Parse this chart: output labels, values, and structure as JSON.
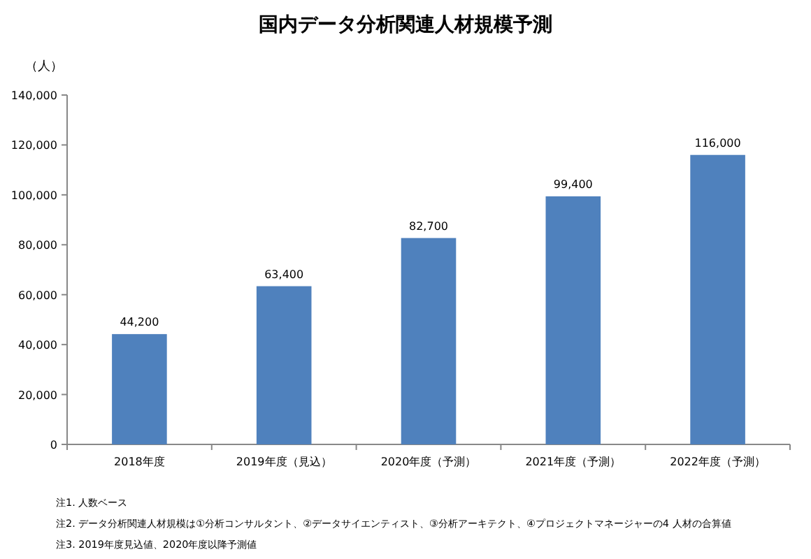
{
  "chart_data": {
    "type": "bar",
    "title": "国内データ分析関連人材規模予測",
    "ylabel": "（人）",
    "categories": [
      "2018年度",
      "2019年度（見込）",
      "2020年度（予測）",
      "2021年度（予測）",
      "2022年度（予測）"
    ],
    "values": [
      44200,
      63400,
      82700,
      99400,
      116000
    ],
    "value_labels": [
      "44,200",
      "63,400",
      "82,700",
      "99,400",
      "116,000"
    ],
    "color": "#4f81bd",
    "ylim": [
      0,
      140000
    ],
    "yticks": [
      0,
      {
        "value": 20000,
        "label": "20,000"
      },
      {
        "value": 40000,
        "label": "40,000"
      },
      {
        "value": 60000,
        "label": "60,000"
      },
      {
        "value": 80000,
        "label": "80,000"
      },
      {
        "value": 100000,
        "label": "100,000"
      },
      {
        "value": 120000,
        "label": "120,000"
      },
      {
        "value": 140000,
        "label": "140,000"
      }
    ],
    "grid": false,
    "annotations": [
      "注1. 人数ベース",
      "注2. データ分析関連人材規模は①分析コンサルタント、②データサイエンティスト、③分析アーキテクト、④プロジェクトマネージャーの4 人材の合算値",
      "注3. 2019年度見込値、2020年度以降予測値"
    ]
  }
}
